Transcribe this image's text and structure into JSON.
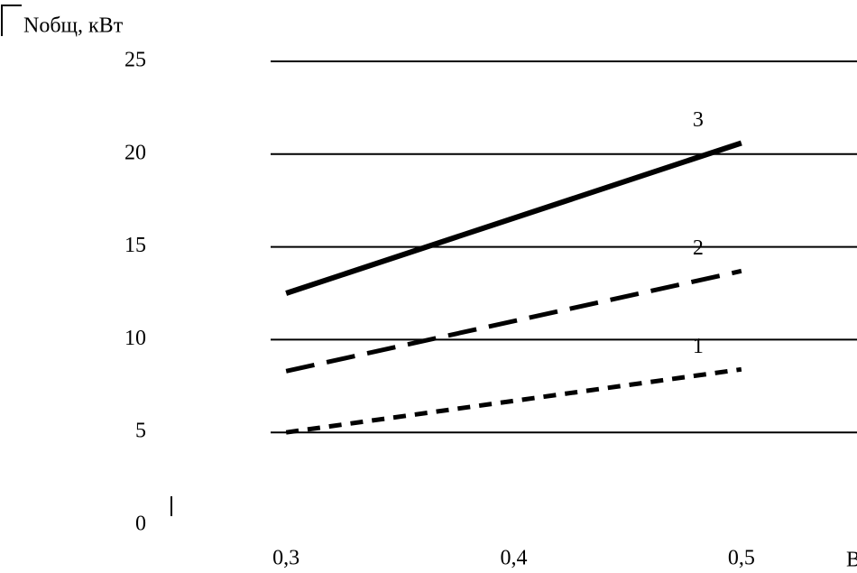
{
  "chart_data": {
    "type": "line",
    "y_label": "Nобщ, кВт",
    "x_label": "В",
    "xlim": [
      0.25,
      0.55
    ],
    "xticks": [
      {
        "value": 0.3,
        "label": "0,3"
      },
      {
        "value": 0.4,
        "label": "0,4"
      },
      {
        "value": 0.5,
        "label": "0,5"
      }
    ],
    "ylim": [
      0,
      25
    ],
    "yticks": [
      0,
      5,
      10,
      15,
      20,
      25
    ],
    "grid": true,
    "x": [
      0.3,
      0.5
    ],
    "series": [
      {
        "name": "1",
        "color": "#000000",
        "dash": "short",
        "values": [
          5.0,
          8.4
        ]
      },
      {
        "name": "2",
        "color": "#000000",
        "dash": "long",
        "values": [
          8.3,
          13.7
        ]
      },
      {
        "name": "3",
        "color": "#000000",
        "dash": "solid",
        "values": [
          12.5,
          20.6
        ]
      }
    ]
  }
}
